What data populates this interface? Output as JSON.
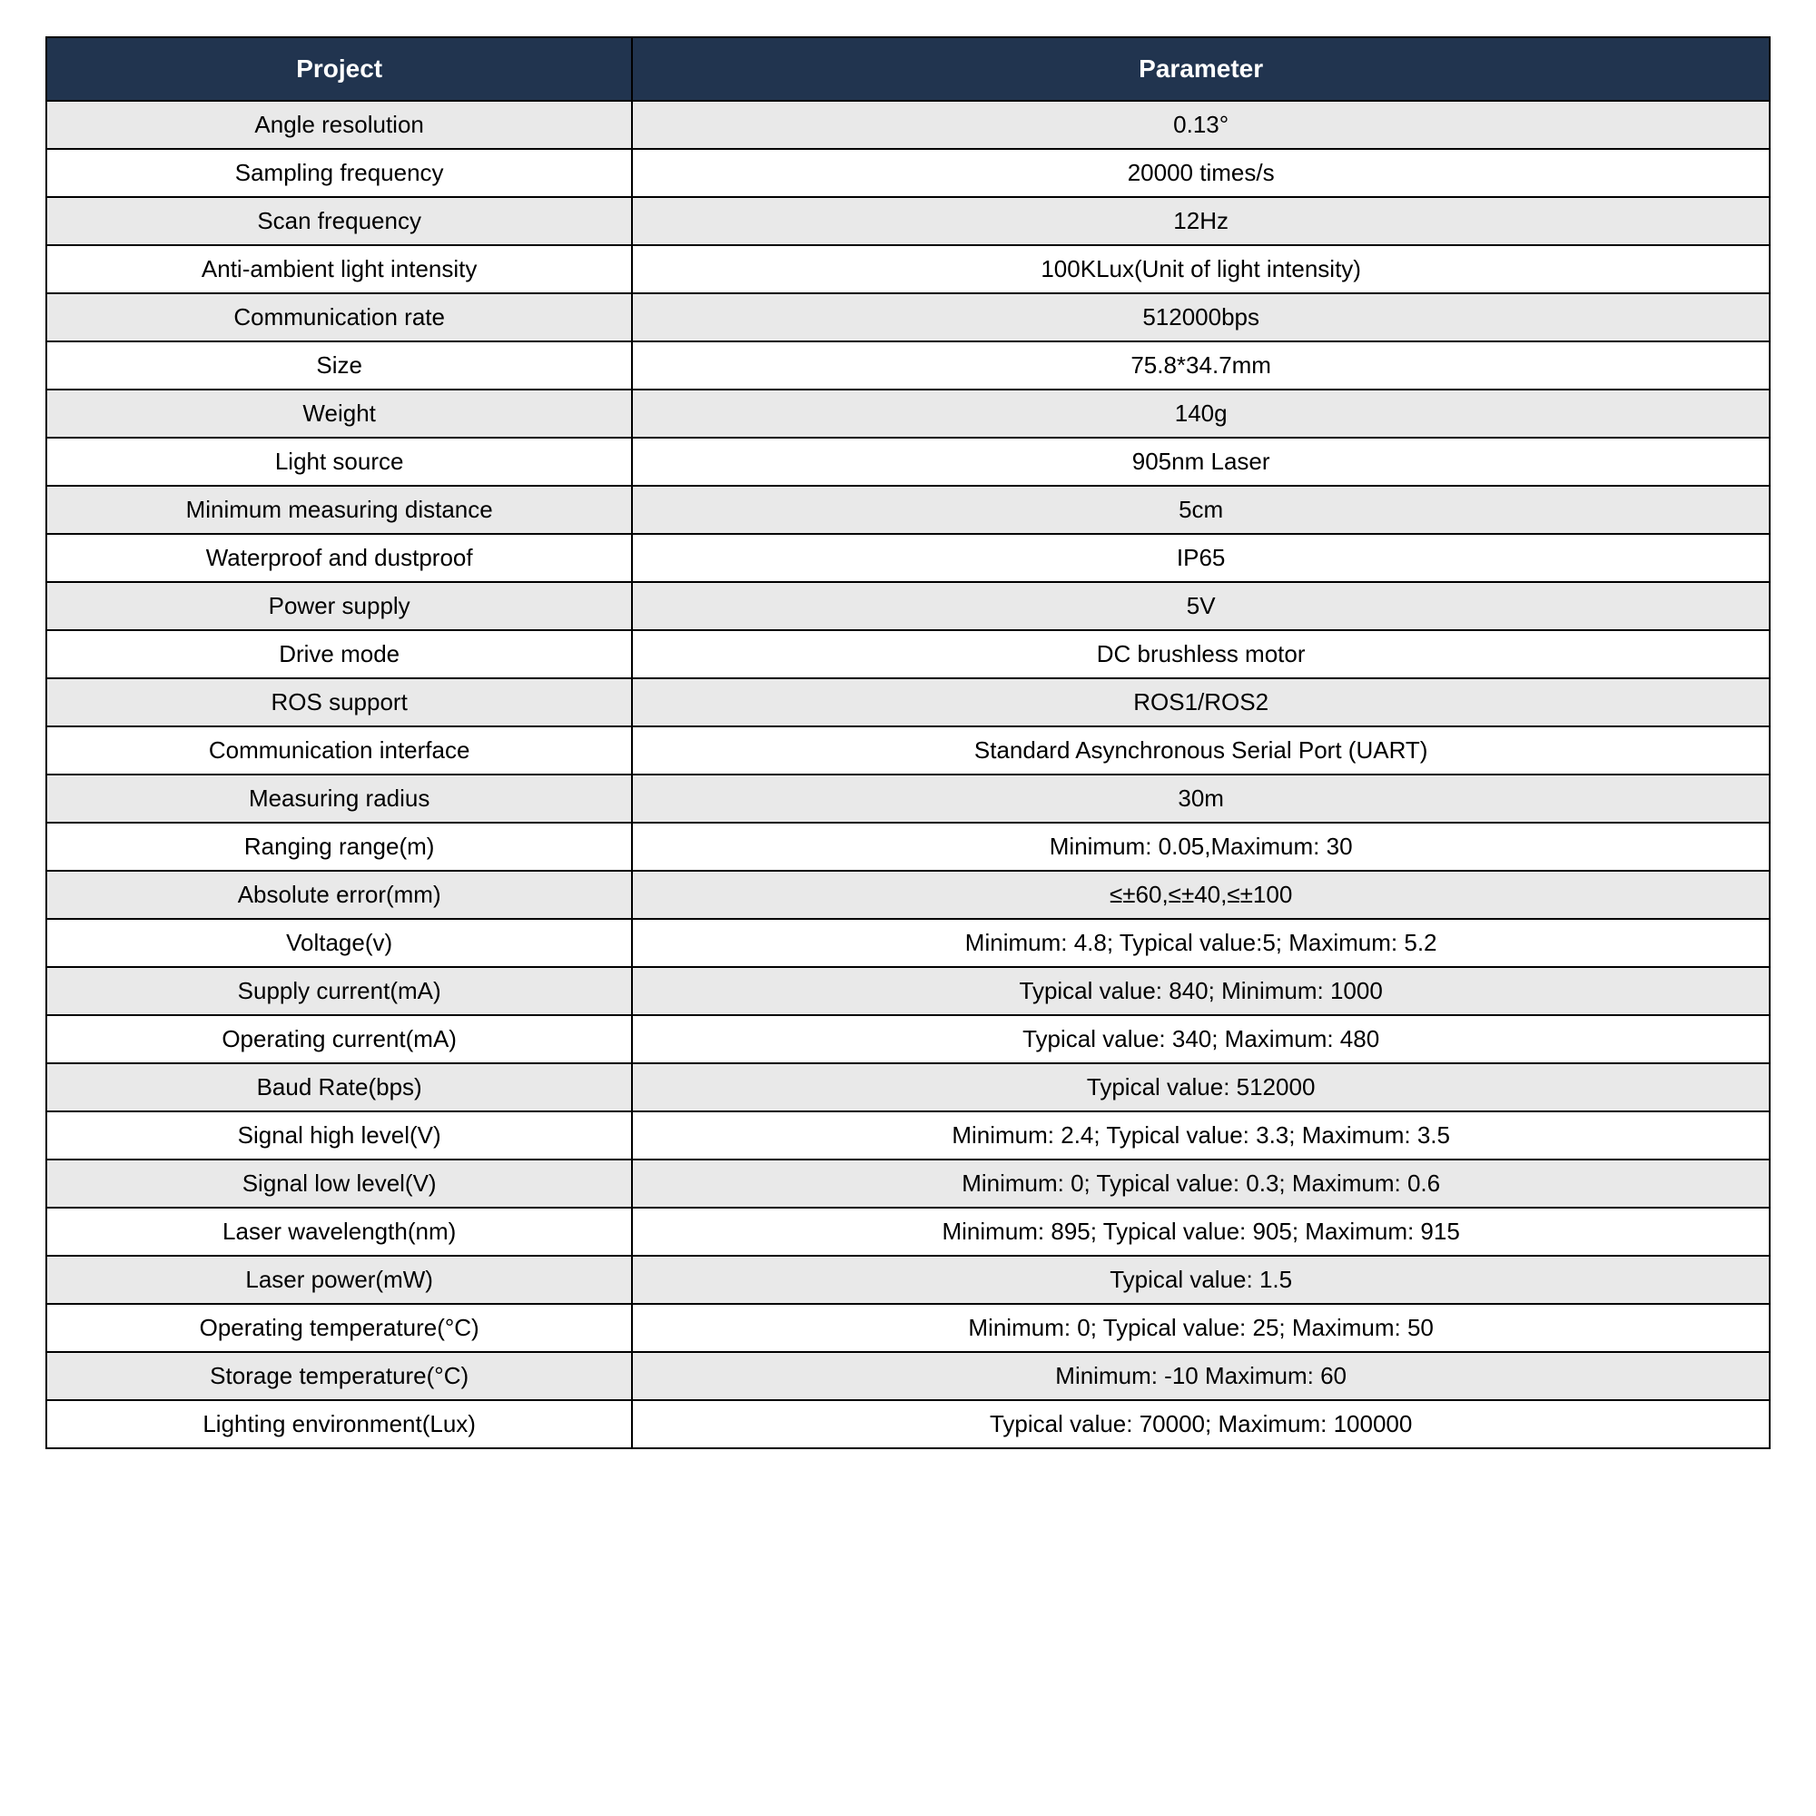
{
  "table": {
    "type": "table",
    "header_bg": "#21344f",
    "header_text_color": "#ffffff",
    "row_alt_bg": "#e9e9e9",
    "row_bg": "#ffffff",
    "border_color": "#000000",
    "highlight_color": "#d60000",
    "font_family": "Segoe UI, Arial, sans-serif",
    "header_font_size_pt": 21,
    "cell_font_size_pt": 20,
    "column_widths_pct": [
      34,
      66
    ],
    "columns": [
      "Project",
      "Parameter"
    ],
    "rows": [
      {
        "project": "Angle resolution",
        "parameter": "0.13°",
        "alt": true
      },
      {
        "project": "Sampling frequency",
        "parameter": "20000 times/s",
        "alt": false
      },
      {
        "project": "Scan frequency",
        "parameter": "12Hz",
        "alt": true
      },
      {
        "project": "Anti-ambient light intensity",
        "parameter": "100KLux(Unit of light intensity)",
        "alt": false
      },
      {
        "project": "Communication rate",
        "parameter": "512000bps",
        "alt": true
      },
      {
        "project": "Size",
        "parameter": "75.8*34.7mm",
        "alt": false
      },
      {
        "project": "Weight",
        "parameter": "140g",
        "alt": true
      },
      {
        "project": "Light source",
        "parameter": "905nm Laser",
        "alt": false
      },
      {
        "project": "Minimum measuring distance",
        "parameter": "5cm",
        "alt": true
      },
      {
        "project": "Waterproof and dustproof",
        "parameter": "IP65",
        "alt": false
      },
      {
        "project": "Power supply",
        "parameter": "5V",
        "alt": true
      },
      {
        "project": "Drive mode",
        "parameter": "DC brushless motor",
        "alt": false
      },
      {
        "project": "ROS support",
        "parameter": "ROS1/ROS2",
        "alt": true,
        "highlight": true
      },
      {
        "project": "Communication interface",
        "parameter": "Standard Asynchronous Serial Port (UART)",
        "alt": false
      },
      {
        "project": "Measuring radius",
        "parameter": "30m",
        "alt": true
      },
      {
        "project": "Ranging range(m)",
        "parameter": "Minimum: 0.05,Maximum: 30",
        "alt": false
      },
      {
        "project": "Absolute error(mm)",
        "parameter": "≤±60,≤±40,≤±100",
        "alt": true
      },
      {
        "project": "Voltage(v)",
        "parameter": "Minimum: 4.8; Typical value:5; Maximum: 5.2",
        "alt": false
      },
      {
        "project": "Supply current(mA)",
        "parameter": "Typical value: 840; Minimum: 1000",
        "alt": true
      },
      {
        "project": "Operating current(mA)",
        "parameter": "Typical value: 340; Maximum: 480",
        "alt": false
      },
      {
        "project": "Baud Rate(bps)",
        "parameter": "Typical value: 512000",
        "alt": true
      },
      {
        "project": "Signal high level(V)",
        "parameter": "Minimum: 2.4; Typical value: 3.3; Maximum: 3.5",
        "alt": false
      },
      {
        "project": "Signal low level(V)",
        "parameter": "Minimum: 0; Typical value: 0.3; Maximum: 0.6",
        "alt": true
      },
      {
        "project": "Laser wavelength(nm)",
        "parameter": "Minimum: 895; Typical value: 905; Maximum: 915",
        "alt": false
      },
      {
        "project": "Laser power(mW)",
        "parameter": "Typical value: 1.5",
        "alt": true
      },
      {
        "project": "Operating temperature(°C)",
        "parameter": "Minimum: 0; Typical value: 25; Maximum: 50",
        "alt": false
      },
      {
        "project": "Storage temperature(°C)",
        "parameter": "Minimum: -10 Maximum: 60",
        "alt": true
      },
      {
        "project": "Lighting environment(Lux)",
        "parameter": "Typical value: 70000; Maximum: 100000",
        "alt": false
      }
    ]
  }
}
